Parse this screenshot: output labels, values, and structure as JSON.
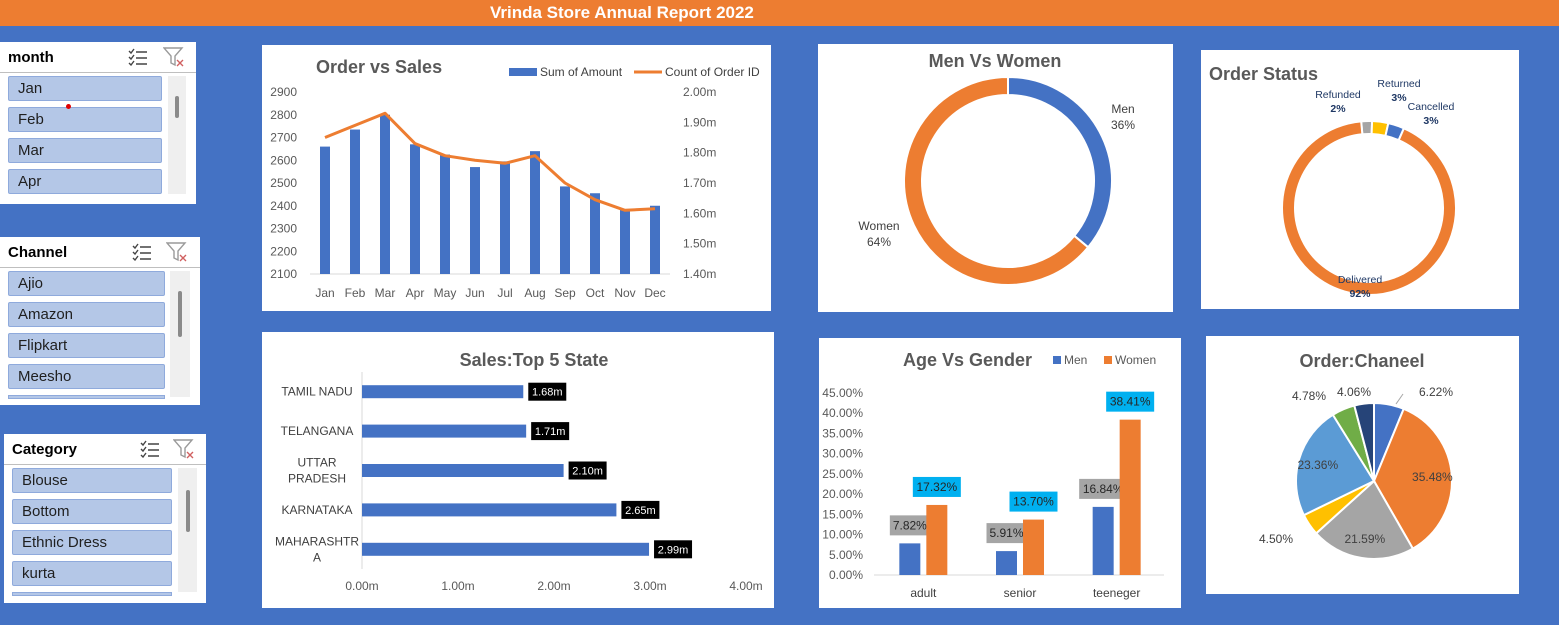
{
  "header": {
    "title": "Vrinda Store Annual Report 2022",
    "color": "#ED7D31"
  },
  "colors": {
    "background": "#4472C4",
    "blue": "#4472C4",
    "orange": "#ED7D31",
    "gray": "#A5A5A5",
    "yellow": "#FFC000",
    "light_blue": "#5B9BD5",
    "green": "#70AD47",
    "navy": "#264478",
    "cyan": "#00B0F0",
    "slicer_item": "#B4C7E7"
  },
  "slicers": {
    "month": {
      "title": "month",
      "items": [
        "Jan",
        "Feb",
        "Mar",
        "Apr"
      ],
      "icons": [
        "multi-select-icon",
        "clear-filter-icon"
      ]
    },
    "channel": {
      "title": "Channel",
      "items": [
        "Ajio",
        "Amazon",
        "Flipkart",
        "Meesho"
      ],
      "icons": [
        "multi-select-icon",
        "clear-filter-icon"
      ]
    },
    "category": {
      "title": "Category",
      "items": [
        "Blouse",
        "Bottom",
        "Ethnic Dress",
        "kurta"
      ],
      "icons": [
        "multi-select-icon",
        "clear-filter-icon"
      ]
    }
  },
  "chart_data": [
    {
      "type": "bar",
      "title": "Order vs Sales",
      "categories": [
        "Jan",
        "Feb",
        "Mar",
        "Apr",
        "May",
        "Jun",
        "Jul",
        "Aug",
        "Sep",
        "Oct",
        "Nov",
        "Dec"
      ],
      "series": [
        {
          "name": "Sum of Amount",
          "type": "bar",
          "axis": "left",
          "values": [
            2660,
            2735,
            2800,
            2670,
            2625,
            2570,
            2595,
            2640,
            2485,
            2455,
            2385,
            2400
          ]
        },
        {
          "name": "Count of Order ID",
          "type": "line",
          "axis": "right",
          "values": [
            1.85,
            1.89,
            1.93,
            1.83,
            1.79,
            1.775,
            1.765,
            1.79,
            1.7,
            1.645,
            1.61,
            1.615
          ]
        }
      ],
      "y_left": {
        "min": 2100,
        "max": 2900,
        "ticks": [
          "2100",
          "2200",
          "2300",
          "2400",
          "2500",
          "2600",
          "2700",
          "2800",
          "2900"
        ]
      },
      "y_right": {
        "min": 1.4,
        "max": 2.0,
        "ticks": [
          "1.40m",
          "1.50m",
          "1.60m",
          "1.70m",
          "1.80m",
          "1.90m",
          "2.00m"
        ]
      },
      "legend": "top-right",
      "grid": false
    },
    {
      "type": "pie",
      "title": "Men Vs Women",
      "donut": true,
      "slices": [
        {
          "label": "Men",
          "value": 36,
          "display": "36%",
          "color": "#4472C4"
        },
        {
          "label": "Women",
          "value": 64,
          "display": "64%",
          "color": "#ED7D31"
        }
      ]
    },
    {
      "type": "pie",
      "title": "Order Status",
      "donut": true,
      "slices": [
        {
          "label": "Delivered",
          "value": 92,
          "display": "92%",
          "color": "#ED7D31"
        },
        {
          "label": "Refunded",
          "value": 2,
          "display": "2%",
          "color": "#A5A5A5"
        },
        {
          "label": "Returned",
          "value": 3,
          "display": "3%",
          "color": "#FFC000"
        },
        {
          "label": "Cancelled",
          "value": 3,
          "display": "3%",
          "color": "#4472C4"
        }
      ]
    },
    {
      "type": "bar",
      "orientation": "horizontal",
      "title": "Sales:Top 5 State",
      "categories": [
        "TAMIL NADU",
        "TELANGANA",
        "UTTAR PRADESH",
        "KARNATAKA",
        "MAHARASHTRA"
      ],
      "category_lines": [
        [
          "TAMIL NADU"
        ],
        [
          "TELANGANA"
        ],
        [
          "UTTAR",
          "PRADESH"
        ],
        [
          "KARNATAKA"
        ],
        [
          "MAHARASHTR",
          "A"
        ]
      ],
      "values": [
        1.68,
        1.71,
        2.1,
        2.65,
        2.99
      ],
      "data_labels": [
        "1.68m",
        "1.71m",
        "2.10m",
        "2.65m",
        "2.99m"
      ],
      "x_ticks": [
        "0.00m",
        "1.00m",
        "2.00m",
        "3.00m",
        "4.00m"
      ],
      "xlim": [
        0,
        4
      ]
    },
    {
      "type": "bar",
      "title": "Age Vs Gender",
      "categories": [
        "adult",
        "senior",
        "teeneger"
      ],
      "series": [
        {
          "name": "Men",
          "values": [
            7.82,
            5.91,
            16.84
          ],
          "labels": [
            "7.82%",
            "5.91%",
            "16.84%"
          ],
          "color": "#4472C4"
        },
        {
          "name": "Women",
          "values": [
            17.32,
            13.7,
            38.41
          ],
          "labels": [
            "17.32%",
            "13.70%",
            "38.41%"
          ],
          "color": "#ED7D31"
        }
      ],
      "y_ticks": [
        "0.00%",
        "5.00%",
        "10.00%",
        "15.00%",
        "20.00%",
        "25.00%",
        "30.00%",
        "35.00%",
        "40.00%",
        "45.00%"
      ],
      "ylim": [
        0,
        45
      ],
      "legend": "top-right"
    },
    {
      "type": "pie",
      "title": "Order:Chaneel",
      "slices": [
        {
          "value": 6.22,
          "display": "6.22%",
          "color": "#4472C4"
        },
        {
          "value": 35.48,
          "display": "35.48%",
          "color": "#ED7D31"
        },
        {
          "value": 21.59,
          "display": "21.59%",
          "color": "#A5A5A5"
        },
        {
          "value": 4.5,
          "display": "4.50%",
          "color": "#FFC000"
        },
        {
          "value": 23.36,
          "display": "23.36%",
          "color": "#5B9BD5"
        },
        {
          "value": 4.78,
          "display": "4.78%",
          "color": "#70AD47"
        },
        {
          "value": 4.06,
          "display": "4.06%",
          "color": "#264478"
        }
      ]
    }
  ]
}
